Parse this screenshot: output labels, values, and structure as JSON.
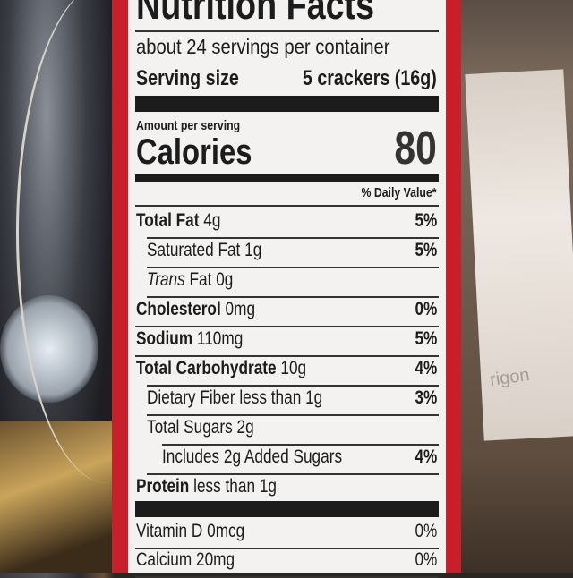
{
  "label": {
    "title": "Nutrition Facts",
    "servings": "about 24 servings per container",
    "serving_size_label": "Serving size",
    "serving_size_value": "5 crackers (16g)",
    "amount_per_serving": "Amount per serving",
    "calories_label": "Calories",
    "calories_value": "80",
    "daily_value_header": "% Daily Value*",
    "nutrients": [
      {
        "name": "Total Fat",
        "amount": "4g",
        "dv": "5%",
        "bold": true,
        "indent": 0
      },
      {
        "name": "Saturated Fat",
        "amount": "1g",
        "dv": "5%",
        "bold": false,
        "indent": 1
      },
      {
        "name": "Trans",
        "name_rest": "Fat",
        "amount": "0g",
        "dv": "",
        "bold": false,
        "indent": 1,
        "italic": true
      },
      {
        "name": "Cholesterol",
        "amount": "0mg",
        "dv": "0%",
        "bold": true,
        "indent": 0
      },
      {
        "name": "Sodium",
        "amount": "110mg",
        "dv": "5%",
        "bold": true,
        "indent": 0
      },
      {
        "name": "Total Carbohydrate",
        "amount": "10g",
        "dv": "4%",
        "bold": true,
        "indent": 0
      },
      {
        "name": "Dietary Fiber",
        "amount": "less than 1g",
        "dv": "3%",
        "bold": false,
        "indent": 1
      },
      {
        "name": "Total Sugars",
        "amount": "2g",
        "dv": "",
        "bold": false,
        "indent": 1
      },
      {
        "name": "Includes 2g Added Sugars",
        "amount": "",
        "dv": "4%",
        "bold": false,
        "indent": 2
      },
      {
        "name": "Protein",
        "amount": "less than 1g",
        "dv": "",
        "bold": true,
        "indent": 0
      }
    ],
    "vitamins": [
      {
        "name": "Vitamin D",
        "amount": "0mcg",
        "dv": "0%"
      },
      {
        "name": "Calcium",
        "amount": "20mg",
        "dv": "0%"
      }
    ]
  },
  "background_paper_text": "rigon"
}
